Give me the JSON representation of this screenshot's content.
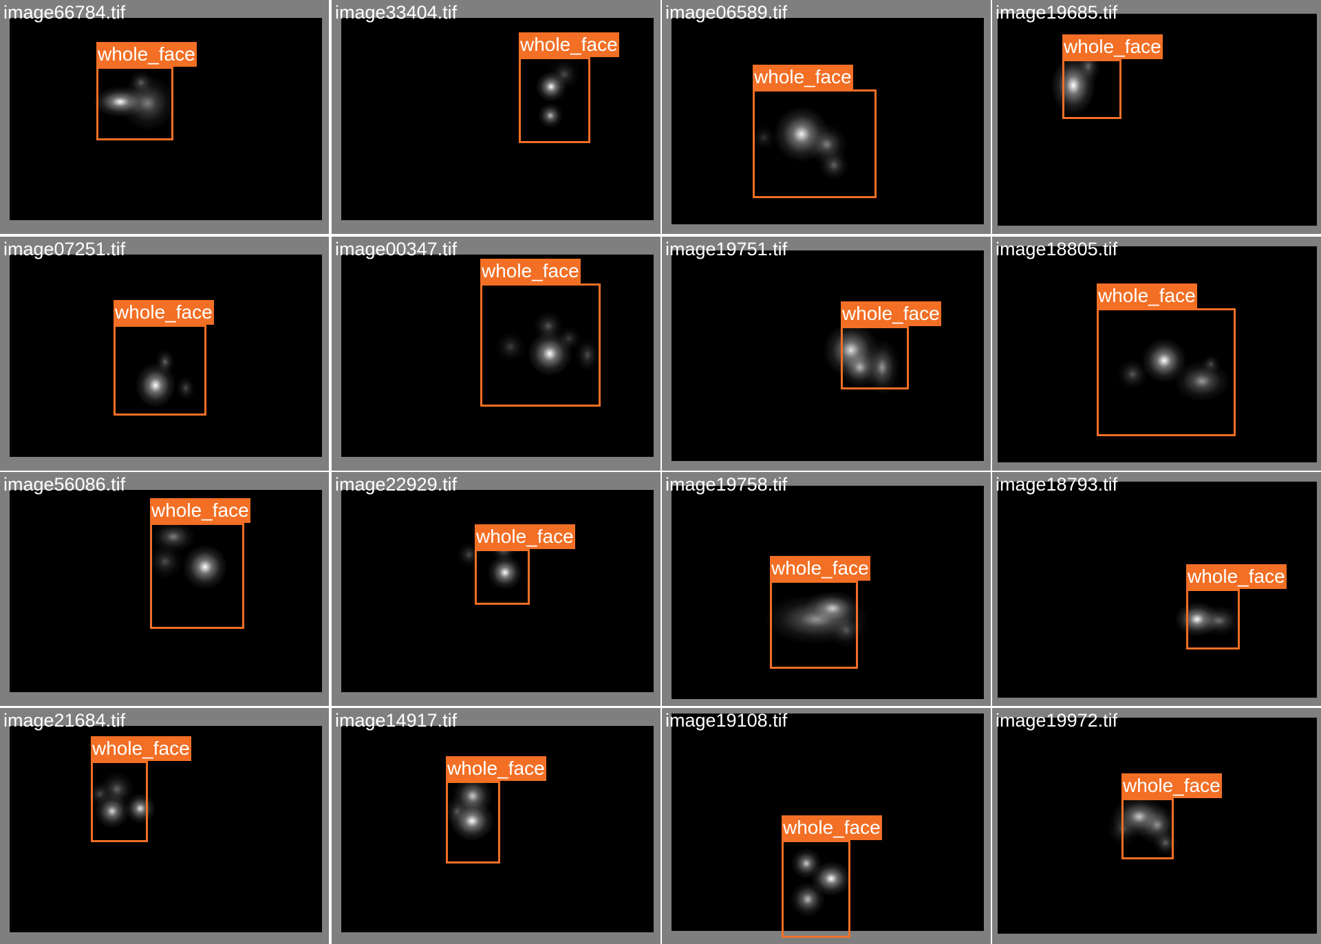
{
  "colors": {
    "tile_background": "#7f7f7f",
    "image_background": "#000000",
    "annotation": "#f26f25",
    "text": "#ffffff"
  },
  "tiles": [
    {
      "filename": "image66784.tif",
      "label": "whole_face"
    },
    {
      "filename": "image33404.tif",
      "label": "whole_face"
    },
    {
      "filename": "image06589.tif",
      "label": "whole_face"
    },
    {
      "filename": "image19685.tif",
      "label": "whole_face"
    },
    {
      "filename": "image07251.tif",
      "label": "whole_face"
    },
    {
      "filename": "image00347.tif",
      "label": "whole_face"
    },
    {
      "filename": "image19751.tif",
      "label": "whole_face"
    },
    {
      "filename": "image18805.tif",
      "label": "whole_face"
    },
    {
      "filename": "image56086.tif",
      "label": "whole_face"
    },
    {
      "filename": "image22929.tif",
      "label": "whole_face"
    },
    {
      "filename": "image19758.tif",
      "label": "whole_face"
    },
    {
      "filename": "image18793.tif",
      "label": "whole_face"
    },
    {
      "filename": "image21684.tif",
      "label": "whole_face"
    },
    {
      "filename": "image14917.tif",
      "label": "whole_face"
    },
    {
      "filename": "image19108.tif",
      "label": "whole_face"
    },
    {
      "filename": "image19972.tif",
      "label": "whole_face"
    }
  ]
}
